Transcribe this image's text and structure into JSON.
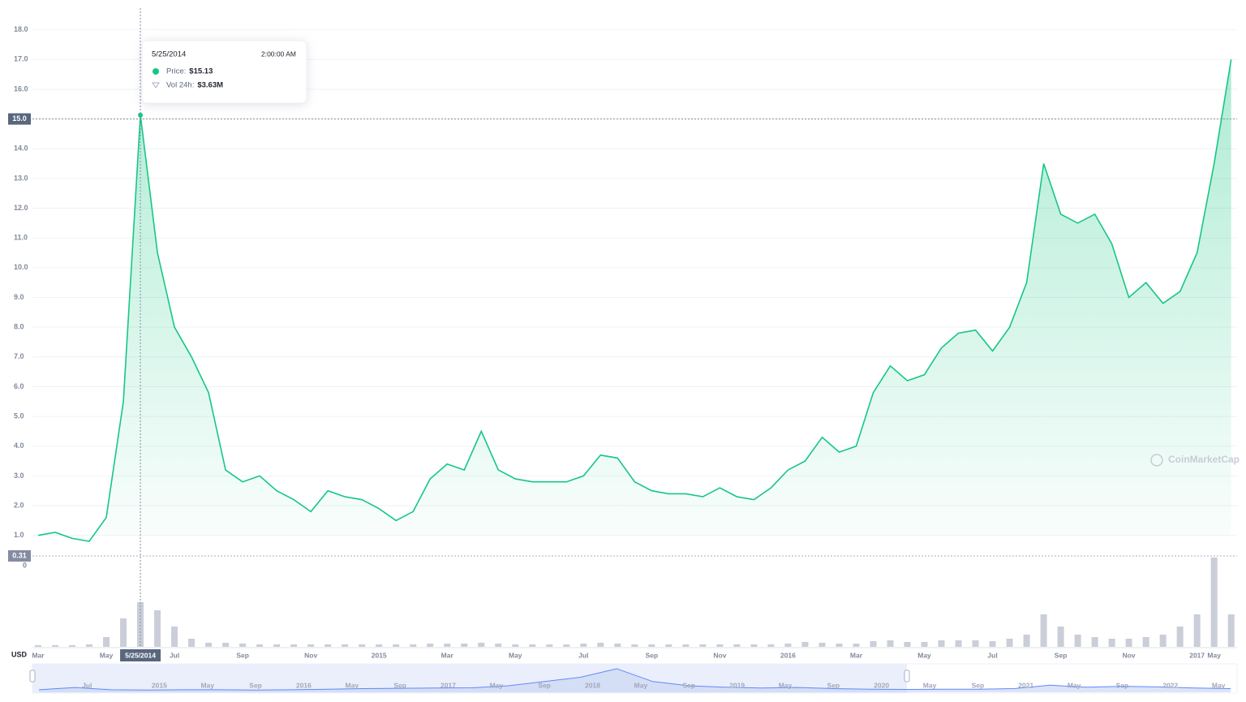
{
  "chart_data": {
    "type": "line",
    "categories": [
      "Mar",
      null,
      null,
      null,
      "May",
      null,
      null,
      null,
      "Jul",
      null,
      null,
      null,
      "Sep",
      null,
      null,
      null,
      "Nov",
      null,
      null,
      null,
      "2015",
      null,
      null,
      null,
      "Mar",
      null,
      null,
      null,
      "May",
      null,
      null,
      null,
      "Jul",
      null,
      null,
      null,
      "Sep",
      null,
      null,
      null,
      "Nov",
      null,
      null,
      null,
      "2016",
      null,
      null,
      null,
      "Mar",
      null,
      null,
      null,
      "May",
      null,
      null,
      null,
      "Jul",
      null,
      null,
      null,
      "Sep",
      null,
      null,
      null,
      "Nov",
      null,
      null,
      null,
      "2017",
      "May",
      null
    ],
    "series": [
      {
        "color": "#16c784",
        "values": [
          1.0,
          1.1,
          0.9,
          0.8,
          1.6,
          5.5,
          15.13,
          10.5,
          8.0,
          7.0,
          5.8,
          3.2,
          2.8,
          3.0,
          2.5,
          2.2,
          1.8,
          2.5,
          2.3,
          2.2,
          1.9,
          1.5,
          1.8,
          2.9,
          3.4,
          3.2,
          4.5,
          3.2,
          2.9,
          2.8,
          2.8,
          2.8,
          3.0,
          3.7,
          3.6,
          2.8,
          2.5,
          2.4,
          2.4,
          2.3,
          2.6,
          2.3,
          2.2,
          2.6,
          3.2,
          3.5,
          4.3,
          3.8,
          4.0,
          5.8,
          6.7,
          6.2,
          6.4,
          7.3,
          7.8,
          7.9,
          7.2,
          8.0,
          9.5,
          13.5,
          11.8,
          11.5,
          11.8,
          10.8,
          9.0,
          9.5,
          8.8,
          9.2,
          10.5,
          13.5,
          17.0
        ]
      }
    ],
    "ylim": [
      0.31,
      18.7
    ],
    "yticks": [
      {
        "value": 1,
        "label": "1.0"
      },
      {
        "value": 2,
        "label": "2.0"
      },
      {
        "value": 3,
        "label": "3.0"
      },
      {
        "value": 4,
        "label": "4.0"
      },
      {
        "value": 5,
        "label": "5.0"
      },
      {
        "value": 6,
        "label": "6.0"
      },
      {
        "value": 7,
        "label": "7.0"
      },
      {
        "value": 8,
        "label": "8.0"
      },
      {
        "value": 9,
        "label": "9.0"
      },
      {
        "value": 10,
        "label": "10.0"
      },
      {
        "value": 11,
        "label": "11.0"
      },
      {
        "value": 12,
        "label": "12.0"
      },
      {
        "value": 13,
        "label": "13.0"
      },
      {
        "value": 14,
        "label": "14.0"
      },
      {
        "value": 15,
        "label": "15.0"
      },
      {
        "value": 16,
        "label": "16.0"
      },
      {
        "value": 17,
        "label": "17.0"
      },
      {
        "value": 18,
        "label": "18.0"
      }
    ],
    "grid": true,
    "crosshair": {
      "index": 6,
      "y": {
        "value": 15,
        "label": "15.0"
      },
      "date": "5/25/2014"
    },
    "min_marker": 0.31,
    "tooltip": {
      "date": "5/25/2014",
      "time": "2:00:00 AM",
      "price_label": "Price:",
      "price": "$15.13",
      "vol_label": "Vol 24h:",
      "vol": "$3.63M"
    },
    "volume": {
      "color": "#c9ced8",
      "values": [
        0.2,
        0.2,
        0.2,
        0.3,
        1.2,
        3.5,
        5.5,
        4.5,
        2.5,
        1.0,
        0.5,
        0.5,
        0.4,
        0.3,
        0.3,
        0.3,
        0.3,
        0.3,
        0.3,
        0.3,
        0.3,
        0.3,
        0.3,
        0.4,
        0.4,
        0.4,
        0.5,
        0.4,
        0.3,
        0.3,
        0.3,
        0.3,
        0.4,
        0.5,
        0.4,
        0.3,
        0.3,
        0.3,
        0.3,
        0.3,
        0.3,
        0.3,
        0.3,
        0.3,
        0.4,
        0.6,
        0.5,
        0.4,
        0.4,
        0.7,
        0.8,
        0.6,
        0.6,
        0.8,
        0.8,
        0.8,
        0.7,
        1.0,
        1.5,
        4.0,
        2.5,
        1.5,
        1.2,
        1.0,
        1.0,
        1.2,
        1.5,
        2.5,
        4.0,
        11.0,
        4.0
      ],
      "ylim": [
        0,
        11
      ],
      "axis_label": "0"
    },
    "currency": "USD",
    "watermark": "CoinMarketCap",
    "navigator": {
      "xlim": [
        "2014-03",
        "2022-06"
      ],
      "x": [
        "2014-03",
        "2014-06",
        "2014-09",
        "2014-12",
        "2015-03",
        "2015-06",
        "2015-09",
        "2015-12",
        "2016-03",
        "2016-06",
        "2016-09",
        "2016-12",
        "2017-03",
        "2017-06",
        "2017-09",
        "2017-12",
        "2018-03",
        "2018-06",
        "2018-09",
        "2018-12",
        "2019-03",
        "2019-06",
        "2019-09",
        "2019-12",
        "2020-03",
        "2020-06",
        "2020-09",
        "2020-12",
        "2021-03",
        "2021-06",
        "2021-09",
        "2021-12",
        "2022-03",
        "2022-06"
      ],
      "values": [
        0.6,
        1.4,
        0.6,
        0.5,
        0.6,
        0.6,
        0.5,
        0.6,
        0.8,
        1.0,
        1.1,
        1.2,
        1.3,
        2.0,
        3.5,
        5.0,
        8.0,
        3.5,
        2.0,
        1.5,
        1.2,
        1.4,
        1.0,
        0.8,
        0.7,
        0.8,
        0.8,
        1.0,
        2.2,
        1.5,
        1.8,
        1.6,
        1.2,
        1.0
      ],
      "xticks": [
        {
          "value": "2014-07",
          "label": "Jul"
        },
        {
          "value": "2015-01",
          "label": "2015"
        },
        {
          "value": "2015-05",
          "label": "May"
        },
        {
          "value": "2015-09",
          "label": "Sep"
        },
        {
          "value": "2016-01",
          "label": "2016"
        },
        {
          "value": "2016-05",
          "label": "May"
        },
        {
          "value": "2016-09",
          "label": "Sep"
        },
        {
          "value": "2017-01",
          "label": "2017"
        },
        {
          "value": "2017-05",
          "label": "May"
        },
        {
          "value": "2017-09",
          "label": "Sep"
        },
        {
          "value": "2018-01",
          "label": "2018"
        },
        {
          "value": "2018-05",
          "label": "May"
        },
        {
          "value": "2018-09",
          "label": "Sep"
        },
        {
          "value": "2019-01",
          "label": "2019"
        },
        {
          "value": "2019-05",
          "label": "May"
        },
        {
          "value": "2019-09",
          "label": "Sep"
        },
        {
          "value": "2020-01",
          "label": "2020"
        },
        {
          "value": "2020-05",
          "label": "May"
        },
        {
          "value": "2020-09",
          "label": "Sep"
        },
        {
          "value": "2021-01",
          "label": "2021"
        },
        {
          "value": "2021-05",
          "label": "May"
        },
        {
          "value": "2021-09",
          "label": "Sep"
        },
        {
          "value": "2022-01",
          "label": "2022"
        },
        {
          "value": "2022-05",
          "label": "May"
        }
      ]
    }
  }
}
